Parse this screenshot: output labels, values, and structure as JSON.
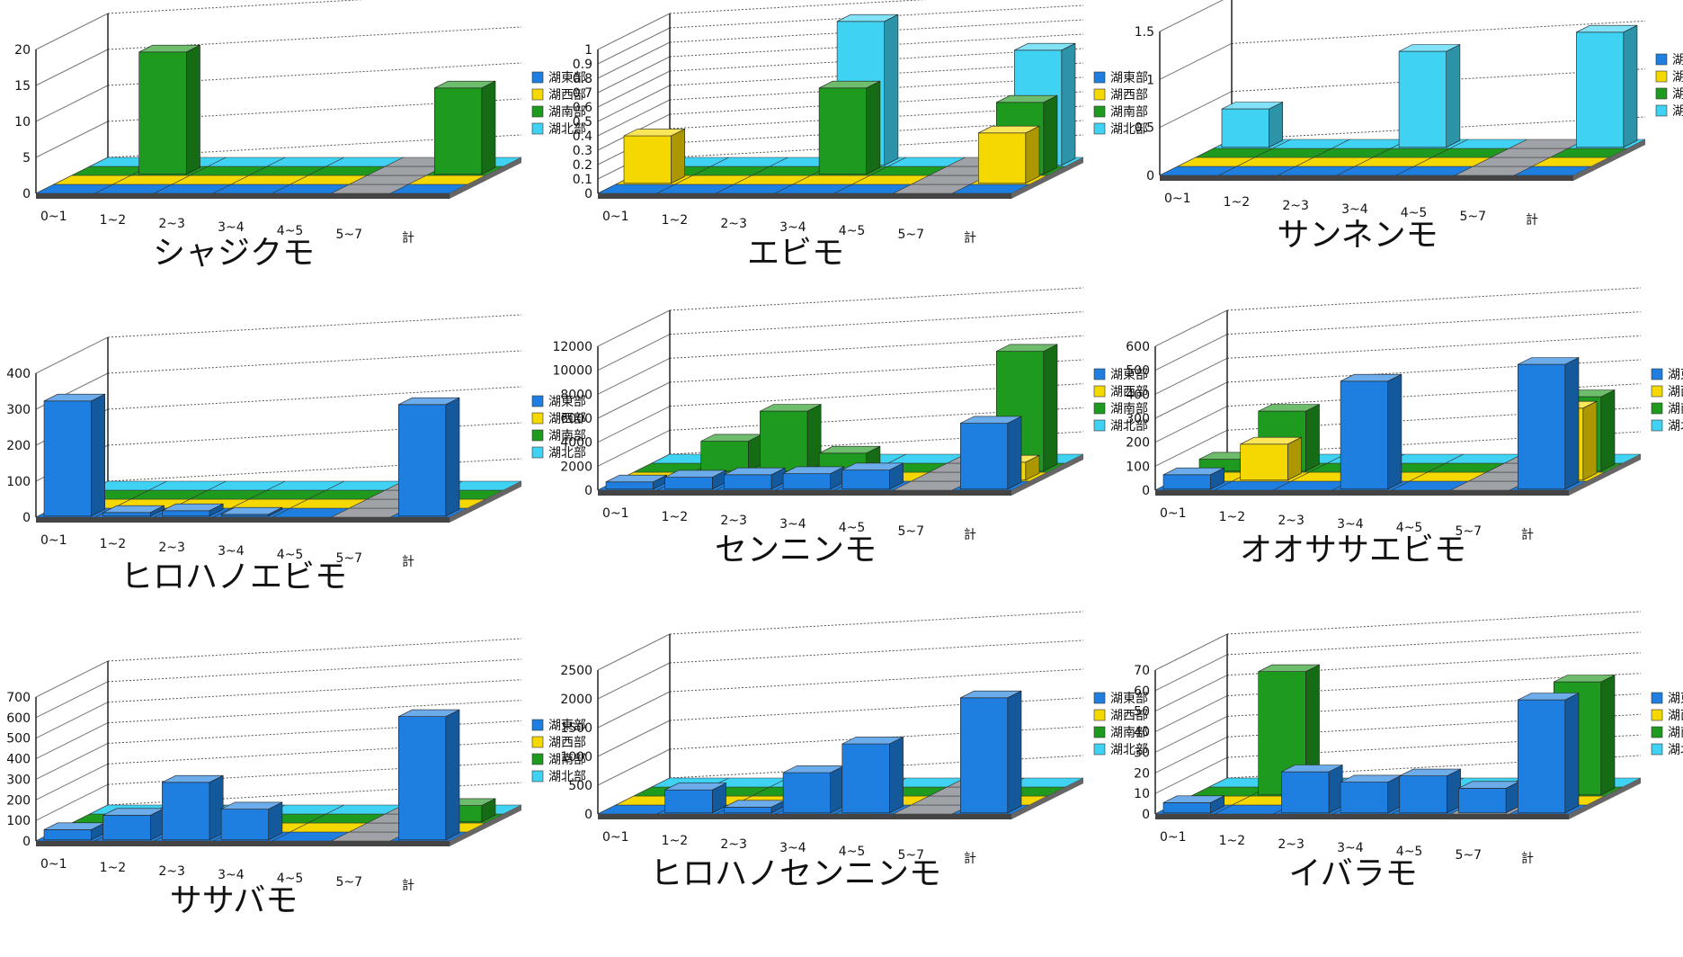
{
  "legend_labels": [
    "湖東部",
    "湖西部",
    "湖南部",
    "湖北部"
  ],
  "colors": {
    "湖東部": "#1e7fe0",
    "湖西部": "#f5d800",
    "湖南部": "#1e9a1e",
    "湖北部": "#3fd2f2"
  },
  "chart_data": [
    {
      "type": "bar",
      "title": "シャジクモ",
      "categories": [
        "0~1",
        "1~2",
        "2~3",
        "3~4",
        "4~5",
        "5~7",
        "計"
      ],
      "yticks": [
        "0",
        "5",
        "10",
        "15",
        "20"
      ],
      "ylim": [
        0,
        20
      ],
      "series": [
        {
          "name": "湖東部",
          "values": [
            0,
            0,
            0,
            0,
            0,
            0,
            0
          ]
        },
        {
          "name": "湖西部",
          "values": [
            0,
            0,
            0,
            0,
            0,
            0,
            0
          ]
        },
        {
          "name": "湖南部",
          "values": [
            0,
            17,
            0,
            0,
            0,
            0,
            12
          ]
        },
        {
          "name": "湖北部",
          "values": [
            0,
            0,
            0,
            0,
            0,
            0,
            0
          ]
        }
      ]
    },
    {
      "type": "bar",
      "title": "エビモ",
      "categories": [
        "0~1",
        "1~2",
        "2~3",
        "3~4",
        "4~5",
        "5~7",
        "計"
      ],
      "yticks": [
        "0",
        "0.1",
        "0.2",
        "0.3",
        "0.4",
        "0.5",
        "0.6",
        "0.7",
        "0.8",
        "0.9",
        "1"
      ],
      "ylim": [
        0,
        1
      ],
      "series": [
        {
          "name": "湖東部",
          "values": [
            0,
            0,
            0,
            0,
            0,
            0,
            0
          ]
        },
        {
          "name": "湖西部",
          "values": [
            0.33,
            0,
            0,
            0,
            0,
            0,
            0.35
          ]
        },
        {
          "name": "湖南部",
          "values": [
            0,
            0,
            0,
            0.6,
            0,
            0,
            0.5
          ]
        },
        {
          "name": "湖北部",
          "values": [
            0,
            0,
            0,
            1.0,
            0,
            0,
            0.8
          ]
        }
      ]
    },
    {
      "type": "bar",
      "title": "サンネンモ",
      "categories": [
        "0~1",
        "1~2",
        "2~3",
        "3~4",
        "4~5",
        "5~7",
        "計"
      ],
      "yticks": [
        "0",
        "0.5",
        "1",
        "1.5"
      ],
      "ylim": [
        0,
        1.5
      ],
      "series": [
        {
          "name": "湖東部",
          "values": [
            0,
            0,
            0,
            0,
            0,
            0,
            0
          ]
        },
        {
          "name": "湖西部",
          "values": [
            0,
            0,
            0,
            0,
            0,
            0,
            0
          ]
        },
        {
          "name": "湖南部",
          "values": [
            0,
            0,
            0,
            0,
            0,
            0,
            0
          ]
        },
        {
          "name": "湖北部",
          "values": [
            0.4,
            0,
            0,
            1.0,
            0,
            0,
            1.2
          ]
        }
      ]
    },
    {
      "type": "bar",
      "title": "ヒロハノエビモ",
      "categories": [
        "0~1",
        "1~2",
        "2~3",
        "3~4",
        "4~5",
        "5~7",
        "計"
      ],
      "yticks": [
        "0",
        "100",
        "200",
        "300",
        "400"
      ],
      "ylim": [
        0,
        400
      ],
      "series": [
        {
          "name": "湖東部",
          "values": [
            320,
            10,
            15,
            5,
            0,
            0,
            310
          ]
        },
        {
          "name": "湖西部",
          "values": [
            0,
            0,
            0,
            0,
            0,
            0,
            0
          ]
        },
        {
          "name": "湖南部",
          "values": [
            0,
            0,
            0,
            0,
            0,
            0,
            0
          ]
        },
        {
          "name": "湖北部",
          "values": [
            0,
            0,
            0,
            0,
            0,
            0,
            0
          ]
        }
      ]
    },
    {
      "type": "bar",
      "title": "センニンモ",
      "categories": [
        "0~1",
        "1~2",
        "2~3",
        "3~4",
        "4~5",
        "5~7",
        "計"
      ],
      "yticks": [
        "0",
        "2000",
        "4000",
        "6000",
        "8000",
        "10000",
        "12000"
      ],
      "ylim": [
        0,
        12000
      ],
      "series": [
        {
          "name": "湖東部",
          "values": [
            600,
            1000,
            1200,
            1300,
            1600,
            0,
            5500
          ]
        },
        {
          "name": "湖西部",
          "values": [
            0,
            0,
            0,
            0,
            0,
            0,
            1500
          ]
        },
        {
          "name": "湖南部",
          "values": [
            0,
            2500,
            5000,
            1500,
            0,
            0,
            10000
          ]
        },
        {
          "name": "湖北部",
          "values": [
            0,
            0,
            0,
            0,
            0,
            0,
            0
          ]
        }
      ]
    },
    {
      "type": "bar",
      "title": "オオササエビモ",
      "categories": [
        "0~1",
        "1~2",
        "2~3",
        "3~4",
        "4~5",
        "5~7",
        "計"
      ],
      "yticks": [
        "0",
        "100",
        "200",
        "300",
        "400",
        "500",
        "600"
      ],
      "ylim": [
        0,
        600
      ],
      "series": [
        {
          "name": "湖東部",
          "values": [
            60,
            0,
            0,
            450,
            0,
            0,
            520
          ]
        },
        {
          "name": "湖西部",
          "values": [
            0,
            150,
            0,
            0,
            0,
            0,
            300
          ]
        },
        {
          "name": "湖南部",
          "values": [
            50,
            250,
            0,
            0,
            0,
            0,
            310
          ]
        },
        {
          "name": "湖北部",
          "values": [
            0,
            0,
            0,
            0,
            0,
            0,
            0
          ]
        }
      ]
    },
    {
      "type": "bar",
      "title": "ササバモ",
      "categories": [
        "0~1",
        "1~2",
        "2~3",
        "3~4",
        "4~5",
        "5~7",
        "計"
      ],
      "yticks": [
        "0",
        "100",
        "200",
        "300",
        "400",
        "500",
        "600",
        "700"
      ],
      "ylim": [
        0,
        700
      ],
      "series": [
        {
          "name": "湖東部",
          "values": [
            50,
            120,
            280,
            150,
            0,
            0,
            600
          ]
        },
        {
          "name": "湖西部",
          "values": [
            0,
            0,
            0,
            0,
            0,
            0,
            0
          ]
        },
        {
          "name": "湖南部",
          "values": [
            0,
            0,
            0,
            0,
            0,
            0,
            80
          ]
        },
        {
          "name": "湖北部",
          "values": [
            0,
            0,
            0,
            0,
            0,
            0,
            0
          ]
        }
      ]
    },
    {
      "type": "bar",
      "title": "ヒロハノセンニンモ",
      "categories": [
        "0~1",
        "1~2",
        "2~3",
        "3~4",
        "4~5",
        "5~7",
        "計"
      ],
      "yticks": [
        "0",
        "500",
        "1000",
        "1500",
        "2000",
        "2500"
      ],
      "ylim": [
        0,
        2500
      ],
      "series": [
        {
          "name": "湖東部",
          "values": [
            0,
            400,
            100,
            700,
            1200,
            0,
            2000
          ]
        },
        {
          "name": "湖西部",
          "values": [
            0,
            0,
            0,
            0,
            0,
            0,
            0
          ]
        },
        {
          "name": "湖南部",
          "values": [
            0,
            0,
            0,
            0,
            0,
            0,
            0
          ]
        },
        {
          "name": "湖北部",
          "values": [
            0,
            0,
            0,
            0,
            0,
            0,
            0
          ]
        }
      ]
    },
    {
      "type": "bar",
      "title": "イバラモ",
      "categories": [
        "0~1",
        "1~2",
        "2~3",
        "3~4",
        "4~5",
        "5~7",
        "計"
      ],
      "yticks": [
        "0",
        "10",
        "20",
        "30",
        "40",
        "50",
        "60",
        "70"
      ],
      "ylim": [
        0,
        70
      ],
      "series": [
        {
          "name": "湖東部",
          "values": [
            5,
            0,
            20,
            15,
            18,
            12,
            55
          ]
        },
        {
          "name": "湖西部",
          "values": [
            0,
            0,
            0,
            0,
            0,
            0,
            0
          ]
        },
        {
          "name": "湖南部",
          "values": [
            0,
            60,
            0,
            0,
            0,
            0,
            55
          ]
        },
        {
          "name": "湖北部",
          "values": [
            0,
            0,
            0,
            0,
            0,
            0,
            0
          ]
        }
      ]
    }
  ]
}
